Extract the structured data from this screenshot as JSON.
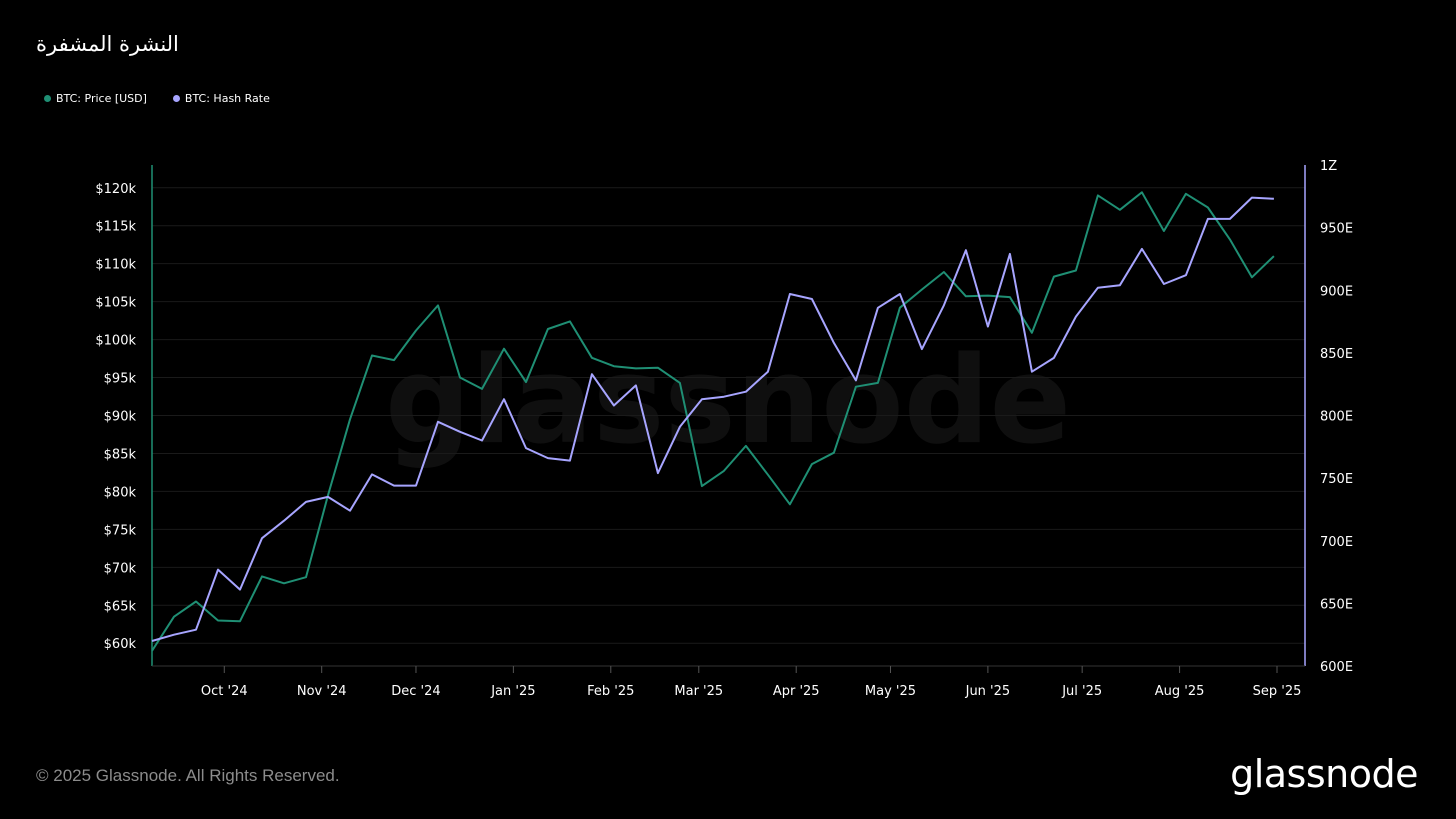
{
  "header": {
    "title": "النشرة المشفرة"
  },
  "legend": [
    {
      "label": "BTC: Price [USD]",
      "color": "#1f8f74"
    },
    {
      "label": "BTC: Hash Rate",
      "color": "#a7a5ff"
    }
  ],
  "footer": {
    "copyright": "© 2025 Glassnode. All Rights Reserved.",
    "logo": "glassnode"
  },
  "watermark": "glassnode",
  "chart_data": {
    "type": "line",
    "title": "",
    "legend_position": "top-left",
    "grid": true,
    "x_ticks": [
      "Oct '24",
      "Nov '24",
      "Dec '24",
      "Jan '25",
      "Feb '25",
      "Mar '25",
      "Apr '25",
      "May '25",
      "Jun '25",
      "Jul '25",
      "Aug '25",
      "Sep '25"
    ],
    "x_range": [
      "2024-09-08",
      "2025-09-01"
    ],
    "y_left": {
      "range": [
        57000,
        123000
      ],
      "ticks": [
        60000,
        65000,
        70000,
        75000,
        80000,
        85000,
        90000,
        95000,
        100000,
        105000,
        110000,
        115000,
        120000
      ],
      "tick_labels": [
        "$60k",
        "$65k",
        "$70k",
        "$75k",
        "$80k",
        "$85k",
        "$90k",
        "$95k",
        "$100k",
        "$105k",
        "$110k",
        "$115k",
        "$120k"
      ]
    },
    "y_right": {
      "range": [
        600,
        1000
      ],
      "ticks": [
        600,
        650,
        700,
        750,
        800,
        850,
        900,
        950,
        1000
      ],
      "tick_labels": [
        "600E",
        "650E",
        "700E",
        "750E",
        "800E",
        "850E",
        "900E",
        "950E",
        "1Z"
      ]
    },
    "series": [
      {
        "name": "BTC: Price [USD]",
        "axis": "left",
        "color": "#1f8f74",
        "points": [
          [
            "2024-09-08",
            59000
          ],
          [
            "2024-09-15",
            63500
          ],
          [
            "2024-09-22",
            65500
          ],
          [
            "2024-09-29",
            63000
          ],
          [
            "2024-10-06",
            62900
          ],
          [
            "2024-10-13",
            68800
          ],
          [
            "2024-10-20",
            67900
          ],
          [
            "2024-10-27",
            68700
          ],
          [
            "2024-11-03",
            79500
          ],
          [
            "2024-11-10",
            89500
          ],
          [
            "2024-11-17",
            97900
          ],
          [
            "2024-11-24",
            97300
          ],
          [
            "2024-12-01",
            101200
          ],
          [
            "2024-12-08",
            104500
          ],
          [
            "2024-12-15",
            95000
          ],
          [
            "2024-12-22",
            93500
          ],
          [
            "2024-12-29",
            98800
          ],
          [
            "2025-01-05",
            94400
          ],
          [
            "2025-01-12",
            101400
          ],
          [
            "2025-01-19",
            102400
          ],
          [
            "2025-01-26",
            97600
          ],
          [
            "2025-02-02",
            96500
          ],
          [
            "2025-02-09",
            96200
          ],
          [
            "2025-02-16",
            96300
          ],
          [
            "2025-02-23",
            94300
          ],
          [
            "2025-03-02",
            80700
          ],
          [
            "2025-03-09",
            82700
          ],
          [
            "2025-03-16",
            86000
          ],
          [
            "2025-03-23",
            82200
          ],
          [
            "2025-03-30",
            78300
          ],
          [
            "2025-04-06",
            83600
          ],
          [
            "2025-04-13",
            85100
          ],
          [
            "2025-04-20",
            93800
          ],
          [
            "2025-04-27",
            94300
          ],
          [
            "2025-05-04",
            104200
          ],
          [
            "2025-05-11",
            106600
          ],
          [
            "2025-05-18",
            108900
          ],
          [
            "2025-05-25",
            105700
          ],
          [
            "2025-06-01",
            105800
          ],
          [
            "2025-06-08",
            105600
          ],
          [
            "2025-06-15",
            100900
          ],
          [
            "2025-06-22",
            108300
          ],
          [
            "2025-06-29",
            109100
          ],
          [
            "2025-07-06",
            119000
          ],
          [
            "2025-07-13",
            117100
          ],
          [
            "2025-07-20",
            119400
          ],
          [
            "2025-07-27",
            114300
          ],
          [
            "2025-08-03",
            119200
          ],
          [
            "2025-08-10",
            117400
          ],
          [
            "2025-08-17",
            113200
          ],
          [
            "2025-08-24",
            108200
          ],
          [
            "2025-08-31",
            111000
          ]
        ]
      },
      {
        "name": "BTC: Hash Rate",
        "axis": "right",
        "color": "#a7a5ff",
        "points": [
          [
            "2024-09-08",
            620
          ],
          [
            "2024-09-15",
            625
          ],
          [
            "2024-09-22",
            629
          ],
          [
            "2024-09-29",
            677
          ],
          [
            "2024-10-06",
            661
          ],
          [
            "2024-10-13",
            702
          ],
          [
            "2024-10-20",
            716
          ],
          [
            "2024-10-27",
            731
          ],
          [
            "2024-11-03",
            735
          ],
          [
            "2024-11-10",
            724
          ],
          [
            "2024-11-17",
            753
          ],
          [
            "2024-11-24",
            744
          ],
          [
            "2024-12-01",
            744
          ],
          [
            "2024-12-08",
            795
          ],
          [
            "2024-12-15",
            787
          ],
          [
            "2024-12-22",
            780
          ],
          [
            "2024-12-29",
            813
          ],
          [
            "2025-01-05",
            774
          ],
          [
            "2025-01-12",
            766
          ],
          [
            "2025-01-19",
            764
          ],
          [
            "2025-01-26",
            833
          ],
          [
            "2025-02-02",
            808
          ],
          [
            "2025-02-09",
            824
          ],
          [
            "2025-02-16",
            754
          ],
          [
            "2025-02-23",
            791
          ],
          [
            "2025-03-02",
            813
          ],
          [
            "2025-03-09",
            815
          ],
          [
            "2025-03-16",
            819
          ],
          [
            "2025-03-23",
            835
          ],
          [
            "2025-03-30",
            897
          ],
          [
            "2025-04-06",
            893
          ],
          [
            "2025-04-13",
            858
          ],
          [
            "2025-04-20",
            828
          ],
          [
            "2025-04-27",
            886
          ],
          [
            "2025-05-04",
            897
          ],
          [
            "2025-05-11",
            853
          ],
          [
            "2025-05-18",
            888
          ],
          [
            "2025-05-25",
            932
          ],
          [
            "2025-06-01",
            871
          ],
          [
            "2025-06-08",
            929
          ],
          [
            "2025-06-15",
            835
          ],
          [
            "2025-06-22",
            846
          ],
          [
            "2025-06-29",
            879
          ],
          [
            "2025-07-06",
            902
          ],
          [
            "2025-07-13",
            904
          ],
          [
            "2025-07-20",
            933
          ],
          [
            "2025-07-27",
            905
          ],
          [
            "2025-08-03",
            912
          ],
          [
            "2025-08-10",
            957
          ],
          [
            "2025-08-17",
            957
          ],
          [
            "2025-08-24",
            974
          ],
          [
            "2025-08-31",
            973
          ]
        ]
      }
    ]
  }
}
